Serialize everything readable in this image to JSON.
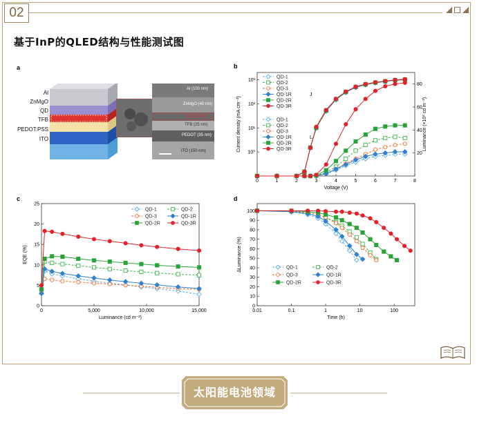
{
  "header": {
    "section_number": "02",
    "title": "基于InP的QLED结构与性能测试图"
  },
  "panel_a": {
    "letter": "a",
    "stack_layers": [
      "Al",
      "ZnMgO",
      "QD",
      "TFB",
      "PEDOT:PSS",
      "ITO"
    ],
    "tem_layers": [
      "Al (100 nm)",
      "ZnMgO (40 nm)",
      "QD (20 nm)",
      "TFB (25 nm)",
      "PEDOT (35 nm)",
      "ITO (150 nm)"
    ]
  },
  "chart_data": [
    {
      "panel": "b",
      "type": "line",
      "xlabel": "Voltage (V)",
      "ylabel": "Current density (mA cm⁻²)",
      "y2label": "Luminance (×10³ cd m⁻²)",
      "xlim": [
        0,
        8
      ],
      "ylim_log": [
        0.1,
        1000
      ],
      "y2lim": [
        0,
        90
      ],
      "xticks": [
        "0",
        "1",
        "2",
        "3",
        "4",
        "5",
        "6",
        "7",
        "8"
      ],
      "yticks": [
        "10⁰",
        "10¹",
        "10²",
        "10³"
      ],
      "y2ticks": [
        "20",
        "40",
        "60",
        "80"
      ],
      "group_labels": [
        "J",
        "L"
      ],
      "x": [
        0,
        1,
        2,
        2.4,
        2.7,
        3,
        3.5,
        4,
        4.5,
        5,
        5.5,
        6,
        6.5,
        7,
        7.5
      ],
      "series_J": [
        {
          "name": "QD-1",
          "values": [
            0.1,
            0.1,
            0.1,
            0.15,
            1.5,
            10,
            50,
            150,
            300,
            480,
            620,
            750,
            850,
            950,
            1000
          ]
        },
        {
          "name": "QD-2",
          "values": [
            0.1,
            0.1,
            0.1,
            0.15,
            1.5,
            10,
            52,
            155,
            310,
            500,
            640,
            760,
            860,
            960,
            1010
          ]
        },
        {
          "name": "QD-3",
          "values": [
            0.1,
            0.1,
            0.1,
            0.15,
            1.5,
            11,
            55,
            160,
            320,
            510,
            660,
            780,
            880,
            980,
            1050
          ]
        },
        {
          "name": "QD-1R",
          "values": [
            0.1,
            0.1,
            0.1,
            0.15,
            1.5,
            10,
            50,
            150,
            300,
            480,
            620,
            740,
            840,
            940,
            990
          ]
        },
        {
          "name": "QD-2R",
          "values": [
            0.1,
            0.1,
            0.1,
            0.15,
            1.5,
            10,
            52,
            155,
            310,
            500,
            640,
            760,
            860,
            960,
            1010
          ]
        },
        {
          "name": "QD-3R",
          "values": [
            0.1,
            0.1,
            0.1,
            0.15,
            1.5,
            11,
            55,
            160,
            320,
            510,
            660,
            780,
            880,
            980,
            1050
          ]
        }
      ],
      "series_L": [
        {
          "name": "QD-1",
          "values": [
            0,
            0,
            0,
            0,
            0,
            0,
            2,
            5,
            9,
            12,
            15,
            17,
            18,
            19,
            19
          ]
        },
        {
          "name": "QD-2",
          "values": [
            0,
            0,
            0,
            0,
            0,
            0.5,
            3,
            8,
            15,
            22,
            27,
            31,
            33,
            34,
            33
          ]
        },
        {
          "name": "QD-3",
          "values": [
            0,
            0,
            0,
            0,
            0,
            0.3,
            2,
            6,
            11,
            15,
            19,
            23,
            25,
            27,
            28
          ]
        },
        {
          "name": "QD-1R",
          "values": [
            0,
            0,
            0,
            0,
            0,
            0,
            2,
            6,
            10,
            14,
            17,
            19,
            20,
            21,
            21
          ]
        },
        {
          "name": "QD-2R",
          "values": [
            0,
            0,
            0,
            0,
            0,
            0.5,
            5,
            13,
            22,
            30,
            36,
            41,
            43,
            44,
            44
          ]
        },
        {
          "name": "QD-3R",
          "values": [
            0,
            0,
            0,
            0,
            0,
            1,
            10,
            28,
            45,
            58,
            67,
            74,
            78,
            80,
            81
          ]
        }
      ]
    },
    {
      "panel": "c",
      "type": "line",
      "xlabel": "Luminance (cd m⁻²)",
      "ylabel": "EQE (%)",
      "xlim": [
        0,
        15000
      ],
      "ylim": [
        0,
        25
      ],
      "xticks": [
        "0",
        "5,000",
        "10,000",
        "15,000"
      ],
      "yticks": [
        "0",
        "5",
        "10",
        "15",
        "20",
        "25"
      ],
      "x": [
        0,
        300,
        1000,
        2000,
        3500,
        5000,
        6500,
        8000,
        9500,
        11000,
        13000,
        15000
      ],
      "series": [
        {
          "name": "QD-1",
          "values": [
            3,
            8.5,
            7.8,
            7.3,
            6.6,
            6.0,
            5.5,
            5.1,
            4.6,
            4.2,
            3.6,
            2.8
          ]
        },
        {
          "name": "QD-2",
          "values": [
            4,
            10.8,
            10.5,
            10.2,
            9.8,
            9.4,
            9.0,
            8.6,
            8.3,
            8.0,
            7.7,
            7.5
          ]
        },
        {
          "name": "QD-3",
          "values": [
            3.5,
            6.6,
            6.3,
            6.0,
            5.8,
            5.5,
            5.3,
            5.0,
            4.8,
            4.5,
            4.2,
            4.0
          ]
        },
        {
          "name": "QD-1R",
          "values": [
            3,
            9.0,
            8.4,
            7.9,
            7.3,
            6.8,
            6.3,
            5.9,
            5.5,
            5.1,
            4.6,
            4.2
          ]
        },
        {
          "name": "QD-2R",
          "values": [
            4,
            11.5,
            12.1,
            12.0,
            11.5,
            11.1,
            10.8,
            10.5,
            10.2,
            9.9,
            9.6,
            9.4
          ]
        },
        {
          "name": "QD-3R",
          "values": [
            5,
            18.3,
            18.1,
            17.6,
            16.9,
            16.3,
            15.8,
            15.3,
            14.8,
            14.4,
            13.9,
            13.5
          ]
        }
      ]
    },
    {
      "panel": "d",
      "type": "line",
      "xscale": "log",
      "xlabel": "Time (h)",
      "ylabel": "ΔLuminance (%)",
      "xlim": [
        0.01,
        400
      ],
      "ylim": [
        0,
        100
      ],
      "xticks": [
        "0.01",
        "0.1",
        "1",
        "10",
        "100"
      ],
      "yticks": [
        "0",
        "10",
        "20",
        "30",
        "40",
        "50",
        "60",
        "70",
        "80",
        "90",
        "100"
      ],
      "x": [
        0.01,
        0.1,
        0.3,
        0.6,
        1,
        2,
        3,
        5,
        8,
        12,
        20,
        30,
        50,
        80,
        120,
        200,
        300
      ],
      "series": [
        {
          "name": "QD-1",
          "values": [
            100,
            99,
            96,
            92,
            86,
            76,
            68,
            58,
            48,
            null,
            null,
            null,
            null,
            null,
            null,
            null,
            null
          ]
        },
        {
          "name": "QD-2",
          "values": [
            100,
            99.5,
            98,
            96,
            93,
            88,
            84,
            78,
            72,
            65,
            56,
            49,
            null,
            null,
            null,
            null,
            null
          ]
        },
        {
          "name": "QD-3",
          "values": [
            100,
            99.5,
            98,
            96,
            93,
            87,
            82,
            75,
            68,
            61,
            53,
            48,
            null,
            null,
            null,
            null,
            null
          ]
        },
        {
          "name": "QD-1R",
          "values": [
            100,
            99,
            97,
            94,
            89,
            80,
            73,
            63,
            54,
            49,
            null,
            null,
            null,
            null,
            null,
            null,
            null
          ]
        },
        {
          "name": "QD-2R",
          "values": [
            100,
            100,
            99,
            98,
            96,
            93,
            90,
            86,
            82,
            77,
            70,
            64,
            57,
            52,
            48,
            null,
            null
          ]
        },
        {
          "name": "QD-3R",
          "values": [
            100,
            100,
            100,
            100,
            99.5,
            99,
            99,
            98,
            97,
            95,
            92,
            88,
            82,
            76,
            70,
            63,
            58
          ]
        }
      ]
    }
  ],
  "legend_names": [
    "QD-1",
    "QD-2",
    "QD-3",
    "QD-1R",
    "QD-2R",
    "QD-3R"
  ],
  "colors": {
    "QD-1": "#5aaee6",
    "QD-2": "#39b54a",
    "QD-3": "#f26b2e",
    "QD-1R": "#2f80d1",
    "QD-2R": "#2aa33a",
    "QD-3R": "#e4202a",
    "frame": "#b9a27a",
    "footer_band": "#c4ab7e"
  },
  "footer": {
    "label": "太阳能电池领域"
  }
}
